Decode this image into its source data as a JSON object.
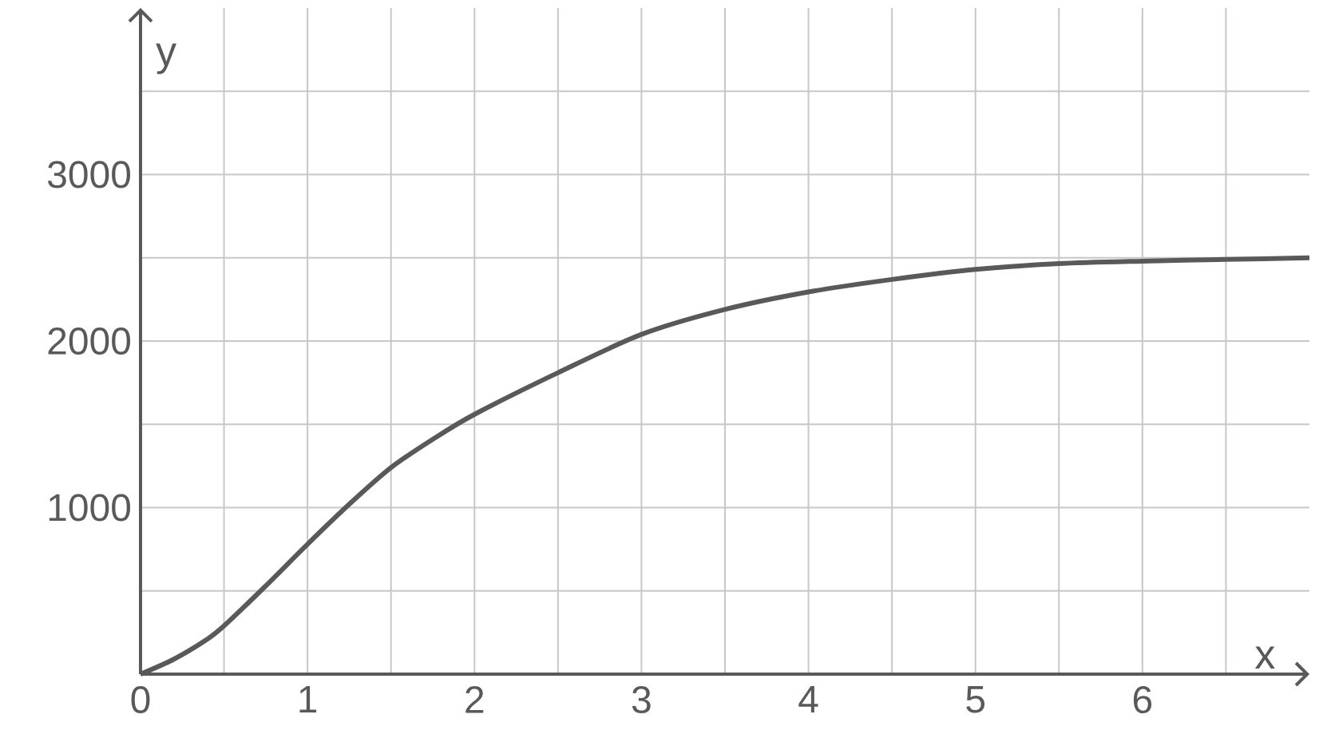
{
  "chart_data": {
    "type": "line",
    "xlabel": "x",
    "ylabel": "y",
    "x": [
      0,
      0.2,
      0.4,
      0.5,
      0.75,
      1,
      1.25,
      1.5,
      1.75,
      2,
      2.5,
      3,
      3.5,
      4,
      4.5,
      5,
      5.5,
      6,
      6.5,
      7
    ],
    "series": [
      {
        "color": "#595959",
        "values": [
          0,
          90,
          210,
          290,
          530,
          780,
          1020,
          1240,
          1410,
          1560,
          1810,
          2040,
          2190,
          2295,
          2370,
          2430,
          2465,
          2480,
          2490,
          2500
        ]
      }
    ],
    "xlim": [
      0,
      7
    ],
    "ylim": [
      0,
      4000
    ],
    "xticks": [
      0,
      {
        "value": 0.5,
        "label": null
      },
      1,
      {
        "value": 1.5,
        "label": null
      },
      2,
      {
        "value": 2.5,
        "label": null
      },
      3,
      {
        "value": 3.5,
        "label": null
      },
      4,
      {
        "value": 4.5,
        "label": null
      },
      5,
      {
        "value": 5.5,
        "label": null
      },
      6,
      {
        "value": 6.5,
        "label": null
      }
    ],
    "yticks": [
      {
        "value": 0,
        "label": null
      },
      {
        "value": 500,
        "label": null
      },
      1000,
      {
        "value": 1500,
        "label": null
      },
      2000,
      {
        "value": 2500,
        "label": null
      },
      3000,
      {
        "value": 3500,
        "label": null
      }
    ],
    "grid": true,
    "marker": "none",
    "line_style": "solid"
  }
}
